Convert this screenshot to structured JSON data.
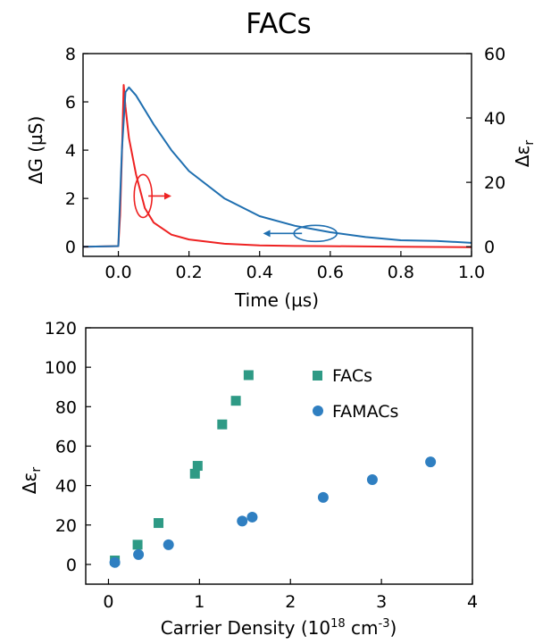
{
  "chart_data": [
    {
      "type": "line",
      "title": "FACs",
      "xlabel": "Time (µs)",
      "ylabel_left": "ΔG (µS)",
      "ylabel_right": "Δε",
      "ylabel_right_sub": "r",
      "xlim": [
        -0.1,
        1.0
      ],
      "ylim_left": [
        -0.4,
        8
      ],
      "ylim_right": [
        -3,
        60
      ],
      "xticks": [
        "0.0",
        "0.2",
        "0.4",
        "0.6",
        "0.8",
        "1.0"
      ],
      "yticks_left": [
        "0",
        "2",
        "4",
        "6",
        "8"
      ],
      "yticks_right": [
        "0",
        "20",
        "40",
        "60"
      ],
      "series": [
        {
          "color": "#ee2222",
          "axis": "left",
          "x": [
            -0.1,
            0.0,
            0.005,
            0.01,
            0.015,
            0.02,
            0.03,
            0.05,
            0.075,
            0.1,
            0.15,
            0.2,
            0.3,
            0.4,
            0.5,
            0.6,
            0.8,
            1.0
          ],
          "y": [
            0.0,
            0.02,
            1.3,
            3.8,
            6.7,
            5.8,
            4.5,
            3.0,
            1.6,
            1.0,
            0.5,
            0.3,
            0.12,
            0.05,
            0.03,
            0.02,
            0.0,
            -0.02
          ]
        },
        {
          "color": "#1f6fb0",
          "axis": "right",
          "x": [
            -0.1,
            0.0,
            0.01,
            0.02,
            0.03,
            0.05,
            0.1,
            0.15,
            0.2,
            0.3,
            0.4,
            0.5,
            0.6,
            0.7,
            0.8,
            0.9,
            1.0
          ],
          "y": [
            0.0,
            0.2,
            30.0,
            48.0,
            49.5,
            47.0,
            38.0,
            30.0,
            23.5,
            15.0,
            9.5,
            6.5,
            4.5,
            3.0,
            2.0,
            1.8,
            1.2
          ]
        }
      ]
    },
    {
      "type": "scatter",
      "xlabel": "Carrier Density (10",
      "xlabel_sup": "18",
      "xlabel_unit": " cm",
      "xlabel_unit_sup": "-3",
      "xlabel_close": ")",
      "ylabel": "Δε",
      "ylabel_sub": "r",
      "xlim": [
        -0.25,
        4.0
      ],
      "ylim": [
        -10,
        120
      ],
      "xticks": [
        "0",
        "1",
        "2",
        "3",
        "4"
      ],
      "yticks": [
        "0",
        "20",
        "40",
        "60",
        "80",
        "100",
        "120"
      ],
      "legend_position": "top-right",
      "series": [
        {
          "name": "FACs",
          "marker": "square",
          "color": "#2e9a85",
          "points": [
            [
              0.07,
              2
            ],
            [
              0.32,
              10
            ],
            [
              0.55,
              21
            ],
            [
              0.95,
              46
            ],
            [
              0.98,
              50
            ],
            [
              1.25,
              71
            ],
            [
              1.4,
              83
            ],
            [
              1.54,
              96
            ]
          ]
        },
        {
          "name": "FAMACs",
          "marker": "circle",
          "color": "#2f7fc1",
          "points": [
            [
              0.07,
              1
            ],
            [
              0.33,
              5
            ],
            [
              0.66,
              10
            ],
            [
              1.47,
              22
            ],
            [
              1.58,
              24
            ],
            [
              2.36,
              34
            ],
            [
              2.9,
              43
            ],
            [
              3.54,
              52
            ]
          ]
        }
      ]
    }
  ]
}
